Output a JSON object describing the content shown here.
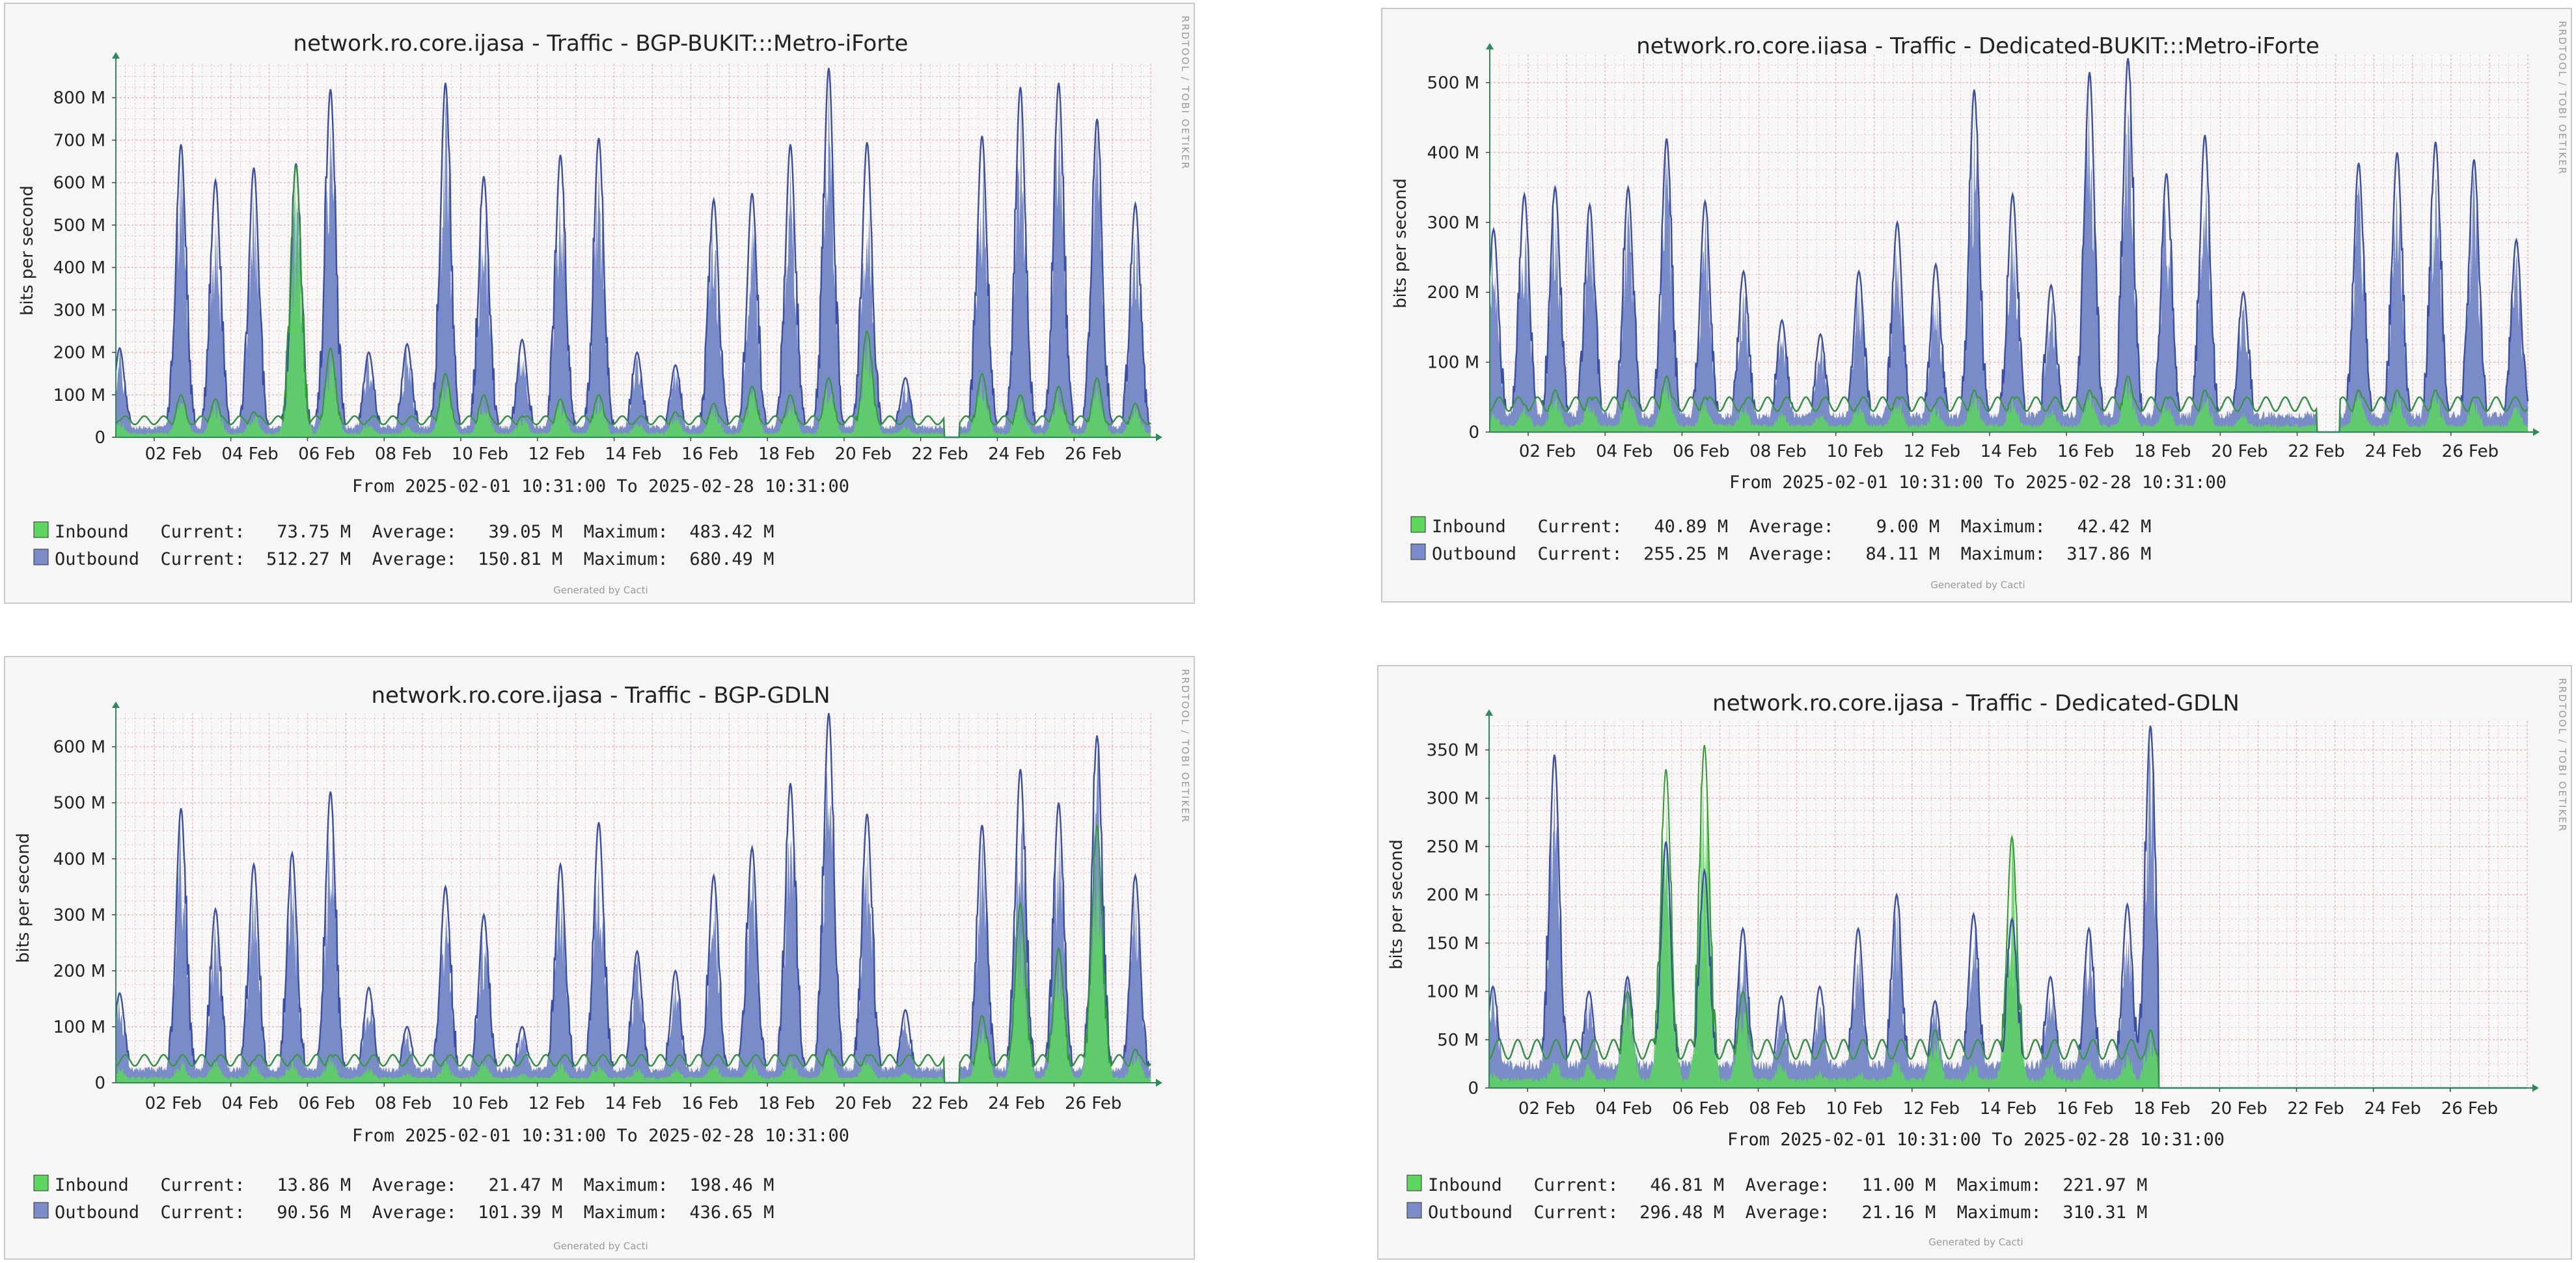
{
  "colors": {
    "inbound": "#5cd65c",
    "inbound_line": "#2f9a2f",
    "outbound": "#7a8cc8",
    "outbound_line": "#3a4ea8",
    "grid": "#f0b8b8",
    "axis": "#2e8b57",
    "plot_bg": "#f8f8f8"
  },
  "chart_data": [
    {
      "type": "area",
      "title": "network.ro.core.ijasa - Traffic - BGP-BUKIT:::Metro-iForte",
      "ylabel": "bits per second",
      "ylim": [
        0,
        880
      ],
      "yticks": [
        0,
        100,
        200,
        300,
        400,
        500,
        600,
        700,
        800
      ],
      "ytick_labels": [
        "0",
        "100 M",
        "200 M",
        "300 M",
        "400 M",
        "500 M",
        "600 M",
        "700 M",
        "800 M"
      ],
      "xtick_labels": [
        "02 Feb",
        "04 Feb",
        "06 Feb",
        "08 Feb",
        "10 Feb",
        "12 Feb",
        "14 Feb",
        "16 Feb",
        "18 Feb",
        "20 Feb",
        "22 Feb",
        "24 Feb",
        "26 Feb"
      ],
      "xlim_days": [
        1,
        28
      ],
      "range_text": "From 2025-02-01 10:31:00 To 2025-02-28 10:31:00",
      "side_text": "RRDTOOL / TOBI OETIKER",
      "generated": "Generated by Cacti",
      "gap_days": [
        [
          22.6,
          23.0
        ]
      ],
      "peaks": [
        {
          "day": 1.1,
          "out": 210,
          "in": 40
        },
        {
          "day": 2.7,
          "out": 690,
          "in": 100
        },
        {
          "day": 3.6,
          "out": 605,
          "in": 90
        },
        {
          "day": 4.6,
          "out": 635,
          "in": 60
        },
        {
          "day": 5.7,
          "out": 645,
          "in": 640
        },
        {
          "day": 6.6,
          "out": 820,
          "in": 210
        },
        {
          "day": 7.6,
          "out": 200,
          "in": 40
        },
        {
          "day": 8.6,
          "out": 220,
          "in": 30
        },
        {
          "day": 9.6,
          "out": 835,
          "in": 150
        },
        {
          "day": 10.6,
          "out": 615,
          "in": 100
        },
        {
          "day": 11.6,
          "out": 230,
          "in": 50
        },
        {
          "day": 12.6,
          "out": 665,
          "in": 90
        },
        {
          "day": 13.6,
          "out": 705,
          "in": 100
        },
        {
          "day": 14.6,
          "out": 200,
          "in": 40
        },
        {
          "day": 15.6,
          "out": 170,
          "in": 60
        },
        {
          "day": 16.6,
          "out": 560,
          "in": 80
        },
        {
          "day": 17.6,
          "out": 575,
          "in": 120
        },
        {
          "day": 18.6,
          "out": 690,
          "in": 100
        },
        {
          "day": 19.6,
          "out": 870,
          "in": 140
        },
        {
          "day": 20.6,
          "out": 695,
          "in": 250
        },
        {
          "day": 21.6,
          "out": 140,
          "in": 30
        },
        {
          "day": 23.6,
          "out": 710,
          "in": 150
        },
        {
          "day": 24.6,
          "out": 825,
          "in": 100
        },
        {
          "day": 25.6,
          "out": 835,
          "in": 120
        },
        {
          "day": 26.6,
          "out": 750,
          "in": 140
        },
        {
          "day": 27.6,
          "out": 550,
          "in": 80
        }
      ],
      "legend": [
        {
          "name": "Inbound",
          "current": "73.75 M",
          "average": "39.05 M",
          "maximum": "483.42 M"
        },
        {
          "name": "Outbound",
          "current": "512.27 M",
          "average": "150.81 M",
          "maximum": "680.49 M"
        }
      ]
    },
    {
      "type": "area",
      "title": "network.ro.core.ijasa - Traffic - Dedicated-BUKIT:::Metro-iForte",
      "ylabel": "bits per second",
      "ylim": [
        0,
        540
      ],
      "yticks": [
        0,
        100,
        200,
        300,
        400,
        500
      ],
      "ytick_labels": [
        "0",
        "100 M",
        "200 M",
        "300 M",
        "400 M",
        "500 M"
      ],
      "xtick_labels": [
        "02 Feb",
        "04 Feb",
        "06 Feb",
        "08 Feb",
        "10 Feb",
        "12 Feb",
        "14 Feb",
        "16 Feb",
        "18 Feb",
        "20 Feb",
        "22 Feb",
        "24 Feb",
        "26 Feb"
      ],
      "xlim_days": [
        1,
        28
      ],
      "range_text": "From 2025-02-01 10:31:00 To 2025-02-28 10:31:00",
      "side_text": "RRDTOOL / TOBI OETIKER",
      "generated": "Generated by Cacti",
      "gap_days": [
        [
          22.5,
          23.1
        ]
      ],
      "peaks": [
        {
          "day": 1.1,
          "out": 290,
          "in": 30
        },
        {
          "day": 1.9,
          "out": 340,
          "in": 40
        },
        {
          "day": 2.7,
          "out": 350,
          "in": 60
        },
        {
          "day": 3.6,
          "out": 325,
          "in": 50
        },
        {
          "day": 4.6,
          "out": 350,
          "in": 60
        },
        {
          "day": 5.6,
          "out": 420,
          "in": 80
        },
        {
          "day": 6.6,
          "out": 330,
          "in": 50
        },
        {
          "day": 7.6,
          "out": 230,
          "in": 40
        },
        {
          "day": 8.6,
          "out": 160,
          "in": 30
        },
        {
          "day": 9.6,
          "out": 140,
          "in": 30
        },
        {
          "day": 10.6,
          "out": 230,
          "in": 40
        },
        {
          "day": 11.6,
          "out": 300,
          "in": 50
        },
        {
          "day": 12.6,
          "out": 240,
          "in": 40
        },
        {
          "day": 13.6,
          "out": 490,
          "in": 60
        },
        {
          "day": 14.6,
          "out": 340,
          "in": 50
        },
        {
          "day": 15.6,
          "out": 210,
          "in": 40
        },
        {
          "day": 16.6,
          "out": 515,
          "in": 60
        },
        {
          "day": 17.6,
          "out": 535,
          "in": 80
        },
        {
          "day": 18.6,
          "out": 370,
          "in": 50
        },
        {
          "day": 19.6,
          "out": 425,
          "in": 60
        },
        {
          "day": 20.6,
          "out": 200,
          "in": 30
        },
        {
          "day": 23.6,
          "out": 385,
          "in": 60
        },
        {
          "day": 24.6,
          "out": 400,
          "in": 60
        },
        {
          "day": 25.6,
          "out": 415,
          "in": 60
        },
        {
          "day": 26.6,
          "out": 390,
          "in": 50
        },
        {
          "day": 27.7,
          "out": 275,
          "in": 40
        }
      ],
      "legend": [
        {
          "name": "Inbound",
          "current": "40.89 M",
          "average": "9.00 M",
          "maximum": "42.42 M"
        },
        {
          "name": "Outbound",
          "current": "255.25 M",
          "average": "84.11 M",
          "maximum": "317.86 M"
        }
      ]
    },
    {
      "type": "area",
      "title": "network.ro.core.ijasa - Traffic - BGP-GDLN",
      "ylabel": "bits per second",
      "ylim": [
        0,
        660
      ],
      "yticks": [
        0,
        100,
        200,
        300,
        400,
        500,
        600
      ],
      "ytick_labels": [
        "0",
        "100 M",
        "200 M",
        "300 M",
        "400 M",
        "500 M",
        "600 M"
      ],
      "xtick_labels": [
        "02 Feb",
        "04 Feb",
        "06 Feb",
        "08 Feb",
        "10 Feb",
        "12 Feb",
        "14 Feb",
        "16 Feb",
        "18 Feb",
        "20 Feb",
        "22 Feb",
        "24 Feb",
        "26 Feb"
      ],
      "xlim_days": [
        1,
        28
      ],
      "range_text": "From 2025-02-01 10:31:00 To 2025-02-28 10:31:00",
      "side_text": "RRDTOOL / TOBI OETIKER",
      "generated": "Generated by Cacti",
      "gap_days": [
        [
          22.6,
          23.0
        ]
      ],
      "peaks": [
        {
          "day": 1.1,
          "out": 160,
          "in": 30
        },
        {
          "day": 2.7,
          "out": 490,
          "in": 40
        },
        {
          "day": 3.6,
          "out": 310,
          "in": 40
        },
        {
          "day": 4.6,
          "out": 390,
          "in": 40
        },
        {
          "day": 5.6,
          "out": 410,
          "in": 40
        },
        {
          "day": 6.6,
          "out": 520,
          "in": 50
        },
        {
          "day": 7.6,
          "out": 170,
          "in": 30
        },
        {
          "day": 8.6,
          "out": 100,
          "in": 20
        },
        {
          "day": 9.6,
          "out": 350,
          "in": 40
        },
        {
          "day": 10.6,
          "out": 300,
          "in": 40
        },
        {
          "day": 11.6,
          "out": 100,
          "in": 20
        },
        {
          "day": 12.6,
          "out": 390,
          "in": 40
        },
        {
          "day": 13.6,
          "out": 465,
          "in": 40
        },
        {
          "day": 14.6,
          "out": 235,
          "in": 30
        },
        {
          "day": 15.6,
          "out": 200,
          "in": 30
        },
        {
          "day": 16.6,
          "out": 370,
          "in": 40
        },
        {
          "day": 17.6,
          "out": 420,
          "in": 40
        },
        {
          "day": 18.6,
          "out": 535,
          "in": 50
        },
        {
          "day": 19.6,
          "out": 660,
          "in": 60
        },
        {
          "day": 20.6,
          "out": 480,
          "in": 50
        },
        {
          "day": 21.6,
          "out": 130,
          "in": 20
        },
        {
          "day": 23.6,
          "out": 460,
          "in": 120
        },
        {
          "day": 24.6,
          "out": 560,
          "in": 320
        },
        {
          "day": 25.6,
          "out": 500,
          "in": 240
        },
        {
          "day": 26.6,
          "out": 620,
          "in": 460
        },
        {
          "day": 27.6,
          "out": 370,
          "in": 60
        }
      ],
      "legend": [
        {
          "name": "Inbound",
          "current": "13.86 M",
          "average": "21.47 M",
          "maximum": "198.46 M"
        },
        {
          "name": "Outbound",
          "current": "90.56 M",
          "average": "101.39 M",
          "maximum": "436.65 M"
        }
      ]
    },
    {
      "type": "area",
      "title": "network.ro.core.ijasa - Traffic - Dedicated-GDLN",
      "ylabel": "bits per second",
      "ylim": [
        0,
        380
      ],
      "yticks": [
        0,
        50,
        100,
        150,
        200,
        250,
        300,
        350
      ],
      "ytick_labels": [
        "0",
        "50 M",
        "100 M",
        "150 M",
        "200 M",
        "250 M",
        "300 M",
        "350 M"
      ],
      "xtick_labels": [
        "02 Feb",
        "04 Feb",
        "06 Feb",
        "08 Feb",
        "10 Feb",
        "12 Feb",
        "14 Feb",
        "16 Feb",
        "18 Feb",
        "20 Feb",
        "22 Feb",
        "24 Feb",
        "26 Feb"
      ],
      "xlim_days": [
        1,
        28
      ],
      "range_text": "From 2025-02-01 10:31:00 To 2025-02-28 10:31:00",
      "side_text": "RRDTOOL / TOBI OETIKER",
      "generated": "Generated by Cacti",
      "gap_days": [],
      "end_day": 18.4,
      "peaks": [
        {
          "day": 1.1,
          "out": 105,
          "in": 20
        },
        {
          "day": 2.7,
          "out": 345,
          "in": 30
        },
        {
          "day": 3.6,
          "out": 100,
          "in": 30
        },
        {
          "day": 4.6,
          "out": 115,
          "in": 100
        },
        {
          "day": 5.6,
          "out": 255,
          "in": 330
        },
        {
          "day": 6.6,
          "out": 225,
          "in": 355
        },
        {
          "day": 7.6,
          "out": 165,
          "in": 100
        },
        {
          "day": 8.6,
          "out": 95,
          "in": 30
        },
        {
          "day": 9.6,
          "out": 105,
          "in": 20
        },
        {
          "day": 10.6,
          "out": 165,
          "in": 20
        },
        {
          "day": 11.6,
          "out": 200,
          "in": 30
        },
        {
          "day": 12.6,
          "out": 90,
          "in": 60
        },
        {
          "day": 13.6,
          "out": 180,
          "in": 30
        },
        {
          "day": 14.6,
          "out": 175,
          "in": 260
        },
        {
          "day": 15.6,
          "out": 115,
          "in": 30
        },
        {
          "day": 16.6,
          "out": 165,
          "in": 30
        },
        {
          "day": 17.6,
          "out": 190,
          "in": 40
        },
        {
          "day": 18.2,
          "out": 375,
          "in": 60
        }
      ],
      "legend": [
        {
          "name": "Inbound",
          "current": "46.81 M",
          "average": "11.00 M",
          "maximum": "221.97 M"
        },
        {
          "name": "Outbound",
          "current": "296.48 M",
          "average": "21.16 M",
          "maximum": "310.31 M"
        }
      ]
    }
  ]
}
